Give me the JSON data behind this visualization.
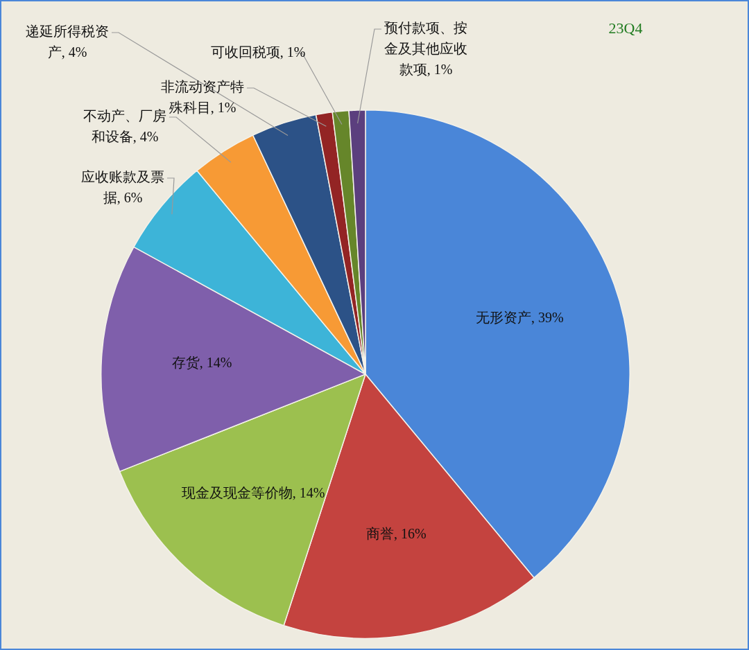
{
  "chart_data": {
    "type": "pie",
    "title": "23Q4",
    "legend": false,
    "value_labels": [
      ", 39%",
      ", 16%",
      ", 14%",
      ", 14%",
      ", 6%",
      ", 4%",
      ", 4%",
      ", 1%",
      ", 1%",
      ", 1%"
    ],
    "categories": [
      "无形资产",
      "商誉",
      "现金及现金等价物",
      "存货",
      "应收账款及票据",
      "不动产、厂房和设备",
      "递延所得税资产",
      "非流动资产特殊科目",
      "可收回税项",
      "预付款项、按金及其他应收款项"
    ],
    "values": [
      39,
      16,
      14,
      14,
      6,
      4,
      4,
      1,
      1,
      1
    ],
    "colors": [
      "#4a86d8",
      "#c4433f",
      "#9cc04f",
      "#7f5fab",
      "#3db4d8",
      "#f79a35",
      "#2c5287",
      "#932424",
      "#66862a",
      "#5b3f7e"
    ]
  }
}
